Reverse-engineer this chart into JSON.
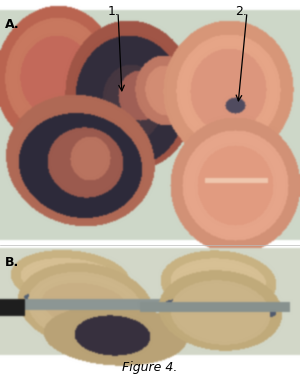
{
  "fig_width": 3.0,
  "fig_height": 3.78,
  "dpi": 100,
  "bg_color": "#ffffff",
  "panel_A_label": "A.",
  "panel_B_label": "B.",
  "label_1": "1.",
  "label_2": "2.",
  "figure_caption": "Figure 4.",
  "caption_fontsize": 9,
  "label_fontsize": 9,
  "annotation_fontsize": 9
}
